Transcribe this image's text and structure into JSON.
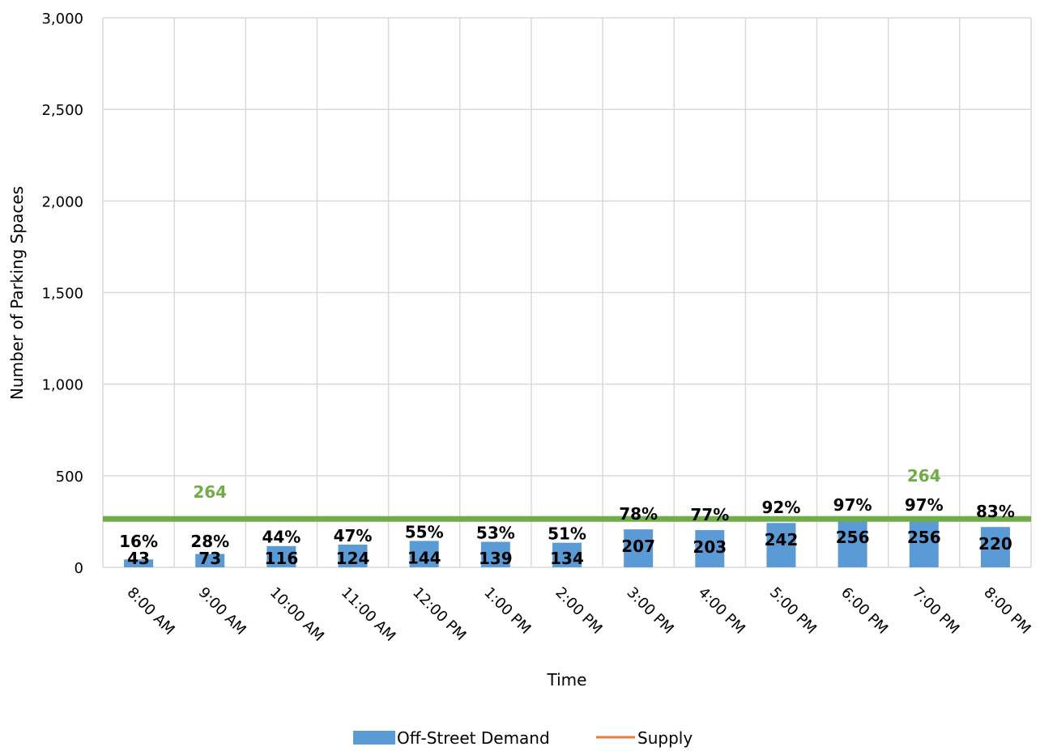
{
  "chart_data": {
    "type": "bar",
    "categories": [
      "8:00 AM",
      "9:00 AM",
      "10:00 AM",
      "11:00 AM",
      "12:00 PM",
      "1:00 PM",
      "2:00 PM",
      "3:00 PM",
      "4:00 PM",
      "5:00 PM",
      "6:00 PM",
      "7:00 PM",
      "8:00 PM"
    ],
    "series": [
      {
        "name": "Off-Street Demand",
        "type": "bar",
        "color": "#5B9BD5",
        "values": [
          43,
          73,
          116,
          124,
          144,
          139,
          134,
          207,
          203,
          242,
          256,
          256,
          220
        ]
      },
      {
        "name": "Supply",
        "type": "line",
        "color": "#70AD47",
        "legend_color": "#ED7D31",
        "values": [
          264,
          264,
          264,
          264,
          264,
          264,
          264,
          264,
          264,
          264,
          264,
          264,
          264
        ]
      }
    ],
    "occupancy_labels": [
      "16%",
      "28%",
      "44%",
      "47%",
      "55%",
      "53%",
      "51%",
      "78%",
      "77%",
      "92%",
      "97%",
      "97%",
      "83%"
    ],
    "supply_labels": [
      {
        "category": "9:00 AM",
        "text": "264"
      },
      {
        "category": "7:00 PM",
        "text": "264"
      }
    ],
    "title": "",
    "xlabel": "Time",
    "ylabel": "Number of Parking Spaces",
    "ylim": [
      0,
      3000
    ],
    "yticks": [
      0,
      500,
      1000,
      1500,
      2000,
      2500,
      3000
    ],
    "ytick_labels": [
      "0",
      "500",
      "1,000",
      "1,500",
      "2,000",
      "2,500",
      "3,000"
    ],
    "grid": true,
    "legend_position": "bottom"
  }
}
